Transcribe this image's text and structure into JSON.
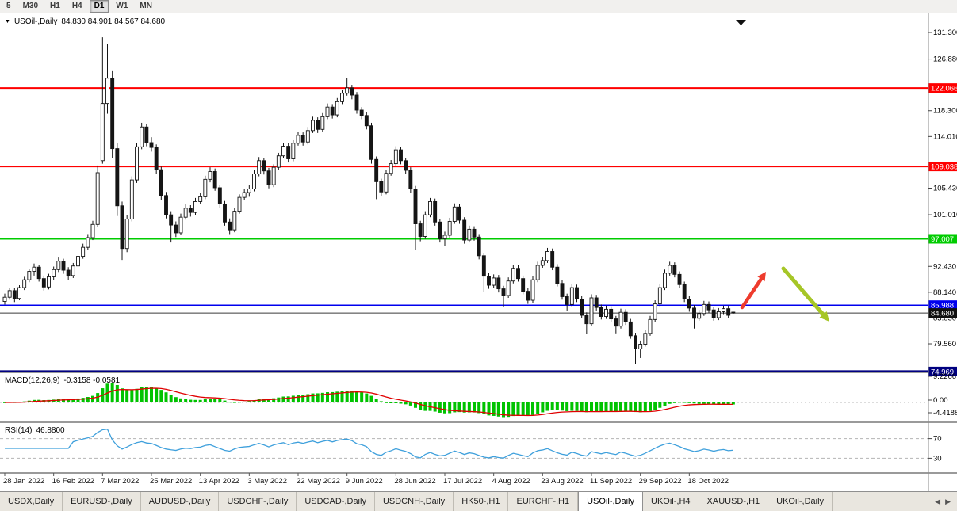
{
  "toolbar": {
    "timeframes": [
      "5",
      "M30",
      "H1",
      "H4",
      "D1",
      "W1",
      "MN"
    ],
    "active": "D1"
  },
  "chart": {
    "symbol_label": "USOil-,Daily",
    "ohlc": "84.830 84.901 84.567 84.680",
    "macd_label": "MACD(12,26,9)",
    "macd_values": "-0.3158 -0.0581",
    "rsi_label": "RSI(14)",
    "rsi_value": "46.8800"
  },
  "axis": {
    "price_ticks": [
      {
        "label": "131.300",
        "price": 131.3
      },
      {
        "label": "126.880",
        "price": 126.88
      },
      {
        "label": "118.300",
        "price": 118.3
      },
      {
        "label": "114.010",
        "price": 114.01
      },
      {
        "label": "105.430",
        "price": 105.43
      },
      {
        "label": "101.010",
        "price": 101.01
      },
      {
        "label": "92.430",
        "price": 92.43
      },
      {
        "label": "88.140",
        "price": 88.14
      },
      {
        "label": "83.850",
        "price": 83.85
      },
      {
        "label": "79.560",
        "price": 79.56
      }
    ],
    "macd_ticks": [
      "9.2266",
      "0.00",
      "-4.4188"
    ],
    "rsi_ticks": [
      "70",
      "30"
    ]
  },
  "chart_data": {
    "type": "candlestick",
    "title": "USOil-,Daily",
    "timeframe": "Daily",
    "x_labels": [
      "28 Jan 2022",
      "16 Feb 2022",
      "7 Mar 2022",
      "25 Mar 2022",
      "13 Apr 2022",
      "3 May 2022",
      "22 May 2022",
      "9 Jun 2022",
      "28 Jun 2022",
      "17 Jul 2022",
      "4 Aug 2022",
      "23 Aug 2022",
      "11 Sep 2022",
      "29 Sep 2022",
      "18 Oct 2022"
    ],
    "label_every": 10,
    "price_range": [
      74.8,
      134.4
    ],
    "levels": [
      {
        "price": 122.066,
        "label": "122.066",
        "color": "#ff0000",
        "width": 2
      },
      {
        "price": 109.038,
        "label": "109.038",
        "color": "#ff0000",
        "width": 2
      },
      {
        "price": 97.007,
        "label": "97.007",
        "color": "#00cc00",
        "width": 2
      },
      {
        "price": 85.988,
        "label": "85.988",
        "color": "#0000ee",
        "width": 1.5
      },
      {
        "price": 84.68,
        "label": "84.680",
        "color": "#3a3a3a",
        "width": 1,
        "badge": "#101010"
      },
      {
        "price": 74.969,
        "label": "74.969",
        "color": "#000080",
        "width": 3
      }
    ],
    "candles": [
      [
        86.6,
        87.9,
        86.1,
        87.3
      ],
      [
        87.3,
        88.9,
        86.9,
        88.4
      ],
      [
        88.4,
        88.8,
        86.5,
        87.1
      ],
      [
        87.1,
        89.3,
        86.8,
        88.9
      ],
      [
        88.9,
        90.7,
        88.5,
        90.2
      ],
      [
        90.2,
        92.0,
        89.8,
        91.6
      ],
      [
        91.6,
        92.9,
        90.9,
        92.3
      ],
      [
        92.3,
        92.7,
        89.9,
        90.4
      ],
      [
        90.4,
        90.9,
        88.4,
        89.0
      ],
      [
        89.0,
        91.2,
        88.6,
        90.7
      ],
      [
        90.7,
        92.4,
        90.2,
        91.9
      ],
      [
        91.9,
        93.9,
        91.5,
        93.3
      ],
      [
        93.3,
        93.7,
        91.2,
        91.8
      ],
      [
        91.8,
        92.3,
        90.2,
        90.9
      ],
      [
        90.9,
        93.0,
        90.5,
        92.5
      ],
      [
        92.5,
        94.7,
        92.1,
        94.1
      ],
      [
        94.1,
        96.2,
        93.7,
        95.6
      ],
      [
        95.6,
        97.8,
        95.2,
        97.2
      ],
      [
        97.2,
        100.0,
        96.8,
        99.4
      ],
      [
        99.4,
        109.2,
        99.0,
        108.0
      ],
      [
        110.0,
        130.5,
        109.5,
        119.5
      ],
      [
        119.5,
        129.4,
        117.8,
        123.7
      ],
      [
        123.7,
        125.0,
        110.5,
        112.0
      ],
      [
        112.0,
        113.0,
        100.8,
        102.5
      ],
      [
        102.5,
        103.2,
        93.5,
        95.4
      ],
      [
        95.4,
        100.9,
        94.8,
        100.3
      ],
      [
        100.3,
        107.4,
        99.9,
        106.8
      ],
      [
        106.8,
        112.9,
        106.3,
        112.3
      ],
      [
        112.3,
        116.3,
        111.9,
        115.6
      ],
      [
        115.6,
        116.1,
        112.4,
        113.0
      ],
      [
        113.0,
        113.9,
        111.5,
        112.2
      ],
      [
        112.2,
        112.7,
        107.8,
        108.5
      ],
      [
        108.5,
        109.0,
        103.5,
        104.2
      ],
      [
        104.2,
        104.8,
        100.4,
        101.0
      ],
      [
        101.0,
        101.6,
        96.4,
        99.3
      ],
      [
        99.3,
        99.9,
        97.3,
        98.0
      ],
      [
        98.0,
        101.2,
        97.6,
        100.6
      ],
      [
        100.6,
        102.8,
        100.2,
        102.1
      ],
      [
        102.1,
        102.6,
        100.7,
        101.4
      ],
      [
        101.4,
        103.8,
        101.0,
        103.2
      ],
      [
        103.2,
        104.7,
        102.8,
        104.0
      ],
      [
        104.0,
        107.5,
        103.6,
        106.9
      ],
      [
        106.9,
        108.9,
        106.4,
        108.2
      ],
      [
        108.2,
        108.7,
        105.0,
        105.5
      ],
      [
        105.5,
        106.0,
        102.2,
        102.8
      ],
      [
        102.8,
        103.3,
        99.2,
        99.8
      ],
      [
        99.8,
        100.4,
        97.8,
        98.5
      ],
      [
        98.5,
        102.2,
        98.1,
        101.6
      ],
      [
        101.6,
        104.4,
        101.2,
        103.9
      ],
      [
        103.9,
        105.3,
        103.4,
        104.7
      ],
      [
        104.7,
        105.9,
        104.0,
        105.3
      ],
      [
        105.3,
        108.4,
        104.9,
        107.8
      ],
      [
        107.8,
        110.6,
        107.4,
        110.0
      ],
      [
        110.0,
        110.5,
        107.7,
        108.3
      ],
      [
        108.3,
        108.8,
        105.4,
        106.0
      ],
      [
        106.0,
        109.4,
        105.6,
        108.9
      ],
      [
        108.9,
        111.3,
        108.5,
        110.8
      ],
      [
        110.8,
        113.0,
        110.4,
        112.4
      ],
      [
        112.4,
        112.9,
        109.7,
        110.3
      ],
      [
        110.3,
        113.4,
        109.9,
        112.9
      ],
      [
        112.9,
        114.8,
        112.5,
        114.2
      ],
      [
        114.2,
        114.7,
        112.5,
        113.1
      ],
      [
        113.1,
        115.6,
        112.7,
        115.0
      ],
      [
        115.0,
        117.3,
        114.6,
        116.7
      ],
      [
        116.7,
        117.2,
        114.6,
        115.2
      ],
      [
        115.2,
        117.9,
        114.8,
        117.3
      ],
      [
        117.3,
        119.5,
        116.9,
        118.9
      ],
      [
        118.9,
        119.4,
        117.0,
        117.6
      ],
      [
        117.6,
        120.4,
        117.2,
        119.8
      ],
      [
        119.8,
        121.8,
        119.4,
        121.2
      ],
      [
        121.2,
        123.7,
        120.8,
        122.1
      ],
      [
        122.1,
        122.6,
        120.2,
        120.9
      ],
      [
        120.9,
        121.4,
        117.8,
        118.4
      ],
      [
        118.4,
        118.9,
        116.9,
        117.5
      ],
      [
        117.5,
        118.0,
        115.2,
        115.8
      ],
      [
        115.8,
        116.3,
        109.5,
        110.2
      ],
      [
        110.2,
        110.7,
        103.6,
        106.5
      ],
      [
        106.5,
        107.0,
        104.1,
        104.8
      ],
      [
        104.8,
        108.5,
        104.4,
        107.9
      ],
      [
        107.9,
        110.1,
        107.5,
        109.5
      ],
      [
        109.5,
        112.4,
        109.1,
        111.8
      ],
      [
        111.8,
        112.3,
        109.4,
        110.0
      ],
      [
        110.0,
        110.5,
        107.8,
        108.4
      ],
      [
        108.4,
        108.9,
        104.6,
        105.3
      ],
      [
        105.3,
        105.8,
        95.1,
        99.5
      ],
      [
        99.5,
        100.0,
        96.6,
        97.4
      ],
      [
        97.4,
        101.6,
        97.0,
        101.0
      ],
      [
        101.0,
        103.8,
        100.6,
        103.2
      ],
      [
        103.2,
        103.7,
        99.2,
        99.8
      ],
      [
        99.8,
        100.3,
        96.4,
        97.0
      ],
      [
        97.0,
        98.2,
        95.8,
        97.6
      ],
      [
        97.6,
        100.5,
        97.2,
        99.9
      ],
      [
        99.9,
        102.9,
        99.5,
        102.3
      ],
      [
        102.3,
        102.8,
        99.5,
        100.1
      ],
      [
        100.1,
        100.6,
        96.2,
        96.8
      ],
      [
        96.8,
        99.2,
        96.4,
        98.6
      ],
      [
        98.6,
        99.1,
        96.7,
        97.3
      ],
      [
        97.3,
        97.8,
        93.6,
        94.2
      ],
      [
        94.2,
        94.7,
        88.2,
        90.8
      ],
      [
        90.8,
        91.3,
        88.7,
        89.3
      ],
      [
        89.3,
        91.1,
        88.9,
        90.5
      ],
      [
        90.5,
        91.0,
        88.1,
        88.7
      ],
      [
        88.7,
        89.2,
        85.7,
        87.6
      ],
      [
        87.6,
        90.6,
        87.2,
        90.0
      ],
      [
        90.0,
        92.7,
        89.6,
        92.1
      ],
      [
        92.1,
        92.6,
        89.9,
        90.4
      ],
      [
        90.4,
        90.9,
        87.8,
        88.3
      ],
      [
        88.3,
        88.8,
        86.2,
        86.8
      ],
      [
        86.8,
        90.8,
        86.4,
        90.2
      ],
      [
        90.2,
        93.2,
        89.8,
        92.6
      ],
      [
        92.6,
        94.0,
        92.2,
        93.4
      ],
      [
        93.4,
        95.5,
        93.0,
        94.9
      ],
      [
        94.9,
        95.4,
        91.8,
        92.3
      ],
      [
        92.3,
        92.8,
        89.1,
        89.6
      ],
      [
        89.6,
        90.1,
        86.9,
        87.4
      ],
      [
        87.4,
        87.9,
        85.1,
        86.1
      ],
      [
        86.1,
        89.5,
        85.7,
        88.9
      ],
      [
        88.9,
        89.4,
        86.5,
        87.0
      ],
      [
        87.0,
        87.5,
        83.8,
        84.3
      ],
      [
        84.3,
        84.8,
        81.2,
        82.9
      ],
      [
        82.9,
        87.8,
        82.5,
        87.2
      ],
      [
        87.2,
        87.7,
        85.1,
        85.6
      ],
      [
        85.6,
        86.1,
        83.6,
        84.1
      ],
      [
        84.1,
        85.9,
        83.7,
        85.3
      ],
      [
        85.3,
        85.8,
        83.2,
        83.7
      ],
      [
        83.7,
        84.2,
        81.3,
        82.5
      ],
      [
        82.5,
        85.4,
        82.1,
        84.8
      ],
      [
        84.8,
        85.3,
        82.7,
        83.2
      ],
      [
        83.2,
        83.7,
        80.4,
        80.9
      ],
      [
        80.9,
        81.4,
        76.25,
        78.7
      ],
      [
        78.7,
        80.1,
        77.2,
        79.5
      ],
      [
        79.5,
        81.9,
        79.1,
        81.3
      ],
      [
        81.3,
        84.2,
        80.9,
        83.6
      ],
      [
        83.6,
        86.8,
        83.2,
        86.2
      ],
      [
        86.2,
        89.5,
        85.8,
        88.9
      ],
      [
        88.9,
        91.9,
        88.5,
        91.3
      ],
      [
        91.3,
        93.2,
        90.9,
        92.6
      ],
      [
        92.6,
        93.1,
        90.6,
        91.1
      ],
      [
        91.1,
        91.6,
        88.9,
        89.4
      ],
      [
        89.4,
        89.9,
        86.5,
        87.0
      ],
      [
        87.0,
        87.5,
        84.9,
        85.5
      ],
      [
        85.5,
        86.0,
        82.1,
        83.8
      ],
      [
        83.8,
        85.2,
        83.4,
        84.6
      ],
      [
        84.6,
        86.7,
        84.2,
        86.1
      ],
      [
        86.1,
        86.6,
        84.7,
        85.2
      ],
      [
        85.2,
        85.7,
        83.4,
        83.9
      ],
      [
        83.9,
        85.5,
        83.5,
        84.9
      ],
      [
        84.9,
        85.9,
        84.5,
        85.4
      ],
      [
        85.4,
        85.9,
        83.9,
        84.3
      ],
      [
        84.83,
        84.901,
        84.567,
        84.68
      ]
    ],
    "indicators": [
      {
        "name": "MACD",
        "params": [
          12,
          26,
          9
        ],
        "display": "-0.3158 -0.0581",
        "axis": [
          "9.2266",
          "0.00",
          "-4.4188"
        ],
        "histogram_color": "#00c300",
        "signal_color": "#e00000"
      },
      {
        "name": "RSI",
        "params": [
          14
        ],
        "display": "46.8800",
        "guides": [
          70,
          30
        ],
        "line_color": "#3fa0dc"
      }
    ]
  },
  "annotations": {
    "arrows": [
      {
        "direction": "up",
        "color": "#ee3b2d"
      },
      {
        "direction": "down",
        "color": "#a6c627"
      }
    ],
    "end_marker": "triangle-down"
  },
  "tabs": {
    "items": [
      {
        "label": "USDX,Daily",
        "active": false
      },
      {
        "label": "EURUSD-,Daily",
        "active": false
      },
      {
        "label": "AUDUSD-,Daily",
        "active": false
      },
      {
        "label": "USDCHF-,Daily",
        "active": false
      },
      {
        "label": "USDCAD-,Daily",
        "active": false
      },
      {
        "label": "USDCNH-,Daily",
        "active": false
      },
      {
        "label": "HK50-,H1",
        "active": false
      },
      {
        "label": "EURCHF-,H1",
        "active": false
      },
      {
        "label": "USOil-,Daily",
        "active": true
      },
      {
        "label": "UKOil-,H4",
        "active": false
      },
      {
        "label": "XAUUSD-,H1",
        "active": false
      },
      {
        "label": "UKOil-,Daily",
        "active": false
      }
    ]
  }
}
